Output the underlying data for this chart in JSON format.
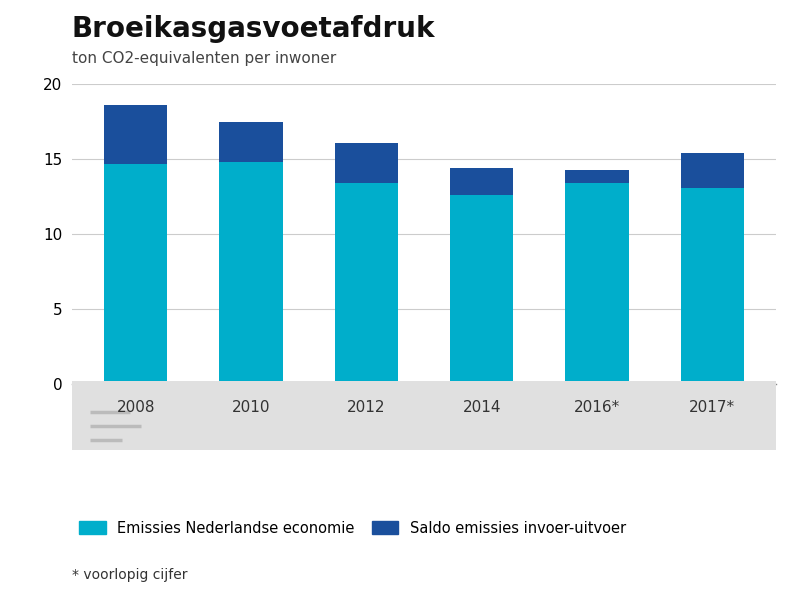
{
  "title": "Broeikasgasvoetafdruk",
  "subtitle": "ton CO2-equivalenten per inwoner",
  "categories": [
    "2008",
    "2010",
    "2012",
    "2014",
    "2016*",
    "2017*"
  ],
  "emissies_economie": [
    14.7,
    14.8,
    13.4,
    12.6,
    13.4,
    13.1
  ],
  "saldo_invoer_uitvoer": [
    3.9,
    2.7,
    2.7,
    1.8,
    0.9,
    2.3
  ],
  "color_cyan": "#00AECB",
  "color_blue": "#1A4F9C",
  "color_bg_plot": "#FFFFFF",
  "color_bg_xarea": "#E0E0E0",
  "color_bg_figure": "#FFFFFF",
  "color_grid": "#CCCCCC",
  "color_spine_bottom": "#888888",
  "ylim": [
    0,
    20
  ],
  "yticks": [
    0,
    5,
    10,
    15,
    20
  ],
  "legend_label1": "Emissies Nederlandse economie",
  "legend_label2": "Saldo emissies invoer-uitvoer",
  "footnote": "* voorlopig cijfer",
  "title_fontsize": 20,
  "subtitle_fontsize": 11,
  "tick_fontsize": 11,
  "bar_width": 0.55
}
